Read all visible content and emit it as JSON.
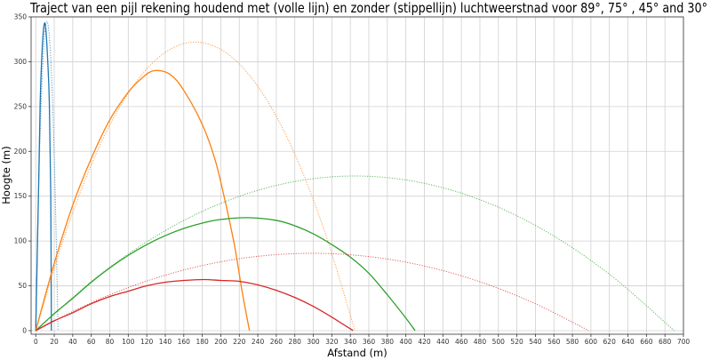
{
  "chart_data": {
    "type": "line",
    "title": "Traject van een pijl rekening houdend met (volle lijn) en zonder (stippellijn) luchtweerstnad voor 89°, 75° , 45° and 30°",
    "xlabel": "Afstand (m)",
    "ylabel": "Hoogte (m)",
    "xlim": [
      -5,
      700
    ],
    "ylim": [
      -4,
      350
    ],
    "xticks": [
      0,
      20,
      40,
      60,
      80,
      100,
      120,
      140,
      160,
      180,
      200,
      220,
      240,
      260,
      280,
      300,
      320,
      340,
      360,
      380,
      400,
      420,
      440,
      460,
      480,
      500,
      520,
      540,
      560,
      580,
      600,
      620,
      640,
      660,
      680,
      700
    ],
    "yticks": [
      0,
      50,
      100,
      150,
      200,
      250,
      300,
      350
    ],
    "grid": true,
    "series": [
      {
        "angle": 89,
        "style": "solid",
        "color": "#1f77b4",
        "x": [
          0,
          3,
          4.8,
          7,
          9.2,
          11,
          13,
          14.7,
          16.2,
          16.9
        ],
        "y": [
          0,
          155,
          254,
          315,
          342,
          335,
          300,
          254,
          155,
          0
        ]
      },
      {
        "angle": 89,
        "style": "dotted",
        "color": "#1f77b4",
        "x": [
          0,
          2.41,
          4.82,
          7.23,
          9.64,
          12.05,
          14.46,
          16.87,
          19.28,
          21.69,
          24.1
        ],
        "y": [
          0,
          124.2,
          220.7,
          289.7,
          331.1,
          344.9,
          331.1,
          289.7,
          220.7,
          124.2,
          0
        ]
      },
      {
        "angle": 75,
        "style": "solid",
        "color": "#ff7f0e",
        "x": [
          0,
          20,
          40,
          60,
          80,
          100,
          115,
          128,
          145,
          160,
          180,
          194,
          205,
          215,
          223,
          231
        ],
        "y": [
          0,
          75,
          140,
          192,
          235,
          266,
          282,
          290,
          286,
          268,
          230,
          190,
          143,
          94,
          44,
          0
        ]
      },
      {
        "angle": 75,
        "style": "dotted",
        "color": "#ff7f0e",
        "x": [
          0,
          34.5,
          69,
          103.5,
          138,
          172.5,
          207,
          241.5,
          276,
          310.5,
          345
        ],
        "y": [
          0,
          115.9,
          206.0,
          270.4,
          309.0,
          321.9,
          309.0,
          270.4,
          206.0,
          115.9,
          0
        ]
      },
      {
        "angle": 45,
        "style": "solid",
        "color": "#2ca02c",
        "x": [
          0,
          20,
          40,
          60,
          80,
          100,
          120,
          140,
          160,
          180,
          200,
          228,
          260,
          280,
          300,
          320,
          340,
          360,
          380,
          400,
          410
        ],
        "y": [
          0,
          19,
          36,
          54,
          70,
          84,
          96,
          106,
          114,
          120,
          124,
          126,
          123,
          117,
          108,
          96,
          82,
          64,
          40,
          14,
          0
        ]
      },
      {
        "angle": 45,
        "style": "dotted",
        "color": "#2ca02c",
        "x": [
          0,
          69,
          138,
          207,
          276,
          345,
          414,
          483,
          552,
          621,
          690
        ],
        "y": [
          0,
          62.1,
          110.4,
          144.9,
          165.6,
          172.5,
          165.6,
          144.9,
          110.4,
          62.1,
          0
        ]
      },
      {
        "angle": 30,
        "style": "solid",
        "color": "#d62728",
        "x": [
          0,
          20,
          40,
          60,
          80,
          100,
          120,
          140,
          160,
          182,
          200,
          220,
          240,
          260,
          280,
          300,
          320,
          343
        ],
        "y": [
          0,
          11,
          20,
          30,
          38,
          44,
          50,
          54,
          56,
          57,
          56,
          55,
          51,
          45,
          37,
          27,
          15,
          0
        ]
      },
      {
        "angle": 30,
        "style": "dotted",
        "color": "#d62728",
        "x": [
          0,
          59.76,
          119.52,
          179.28,
          239.04,
          298.8,
          358.56,
          418.32,
          478.08,
          537.84,
          597.6
        ],
        "y": [
          0,
          31.05,
          55.2,
          72.45,
          82.8,
          86.25,
          82.8,
          72.45,
          55.2,
          31.05,
          0
        ]
      }
    ]
  }
}
